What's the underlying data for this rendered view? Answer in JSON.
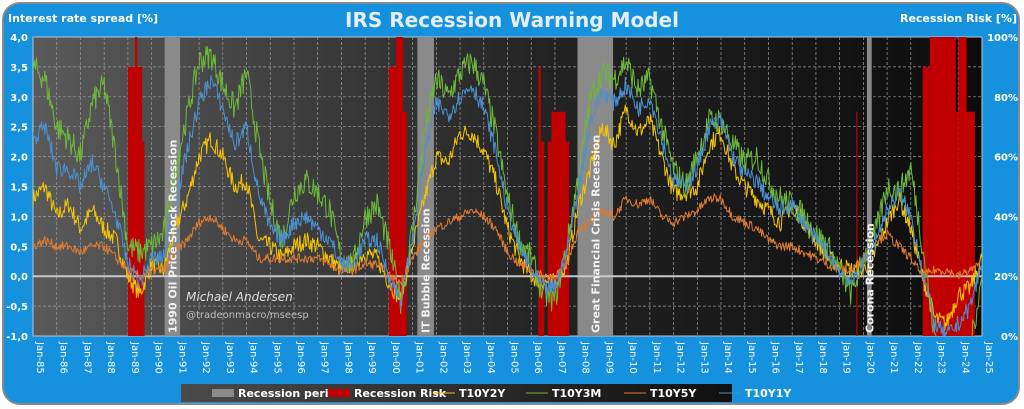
{
  "chart_data": {
    "type": "line",
    "title": "IRS Recession Warning Model",
    "y_left_label": "Interest rate spread [%]",
    "y_right_label": "Recession Risk [%]",
    "y_left_range": [
      -1.0,
      4.0
    ],
    "y_right_range": [
      0,
      100
    ],
    "y_left_ticks": [
      "4,0",
      "3,5",
      "3,0",
      "2,5",
      "2,0",
      "1,5",
      "1,0",
      "0,5",
      "0,0",
      "-0,5",
      "-1,0"
    ],
    "y_right_ticks": [
      "100%",
      "80%",
      "60%",
      "40%",
      "20%",
      "0%"
    ],
    "x_range": [
      1985,
      2025
    ],
    "x_ticks": [
      "Jan-85",
      "Jan-86",
      "Jan-87",
      "Jan-88",
      "Jan-89",
      "Jan-90",
      "Jan-91",
      "Jan-92",
      "Jan-93",
      "Jan-94",
      "Jan-95",
      "Jan-96",
      "Jan-97",
      "Jan-98",
      "Jan-99",
      "Jan-00",
      "Jan-01",
      "Jan-02",
      "Jan-03",
      "Jan-04",
      "Jan-05",
      "Jan-06",
      "Jan-07",
      "Jan-08",
      "Jan-09",
      "Jan-10",
      "Jan-11",
      "Jan-12",
      "Jan-13",
      "Jan-14",
      "Jan-15",
      "Jan-16",
      "Jan-17",
      "Jan-18",
      "Jan-19",
      "Jan-20",
      "Jan-21",
      "Jan-22",
      "Jan-23",
      "Jan-24",
      "Jan-25"
    ],
    "grid": true,
    "recession_periods": [
      {
        "label": "1990 Oil Price Shock  Recession",
        "start": 1990.55,
        "end": 1991.2
      },
      {
        "label": "IT Bubble Recession",
        "start": 2001.2,
        "end": 2001.9
      },
      {
        "label": "Great Financial Crisis Recession",
        "start": 2007.95,
        "end": 2009.45
      },
      {
        "label": "Corona Recession",
        "start": 2020.15,
        "end": 2020.35
      }
    ],
    "recession_risk": [
      {
        "start": 1989.0,
        "end": 1989.3,
        "value": 90
      },
      {
        "start": 1989.3,
        "end": 1989.4,
        "value": 100
      },
      {
        "start": 1989.4,
        "end": 1989.6,
        "value": 90
      },
      {
        "start": 1989.6,
        "end": 1989.7,
        "value": 65
      },
      {
        "start": 2000.0,
        "end": 2000.15,
        "value": 90
      },
      {
        "start": 2000.15,
        "end": 2000.3,
        "value": 90
      },
      {
        "start": 2000.3,
        "end": 2000.6,
        "value": 100
      },
      {
        "start": 2000.6,
        "end": 2000.75,
        "value": 75
      },
      {
        "start": 2006.3,
        "end": 2006.4,
        "value": 90
      },
      {
        "start": 2006.4,
        "end": 2006.55,
        "value": 65
      },
      {
        "start": 2006.7,
        "end": 2006.85,
        "value": 65
      },
      {
        "start": 2006.85,
        "end": 2007.45,
        "value": 75
      },
      {
        "start": 2007.45,
        "end": 2007.6,
        "value": 65
      },
      {
        "start": 2019.7,
        "end": 2019.75,
        "value": 75
      },
      {
        "start": 2022.5,
        "end": 2022.8,
        "value": 90
      },
      {
        "start": 2022.8,
        "end": 2023.25,
        "value": 100
      },
      {
        "start": 2023.25,
        "end": 2023.65,
        "value": 100
      },
      {
        "start": 2023.65,
        "end": 2023.9,
        "value": 100
      },
      {
        "start": 2023.9,
        "end": 2024.0,
        "value": 75
      },
      {
        "start": 2024.0,
        "end": 2024.35,
        "value": 100
      },
      {
        "start": 2024.35,
        "end": 2024.7,
        "value": 75
      }
    ],
    "series": [
      {
        "name": "T10Y2Y",
        "color": "#f5c400",
        "x": [
          1985,
          1985.5,
          1986,
          1986.5,
          1987,
          1987.5,
          1988,
          1988.5,
          1989,
          1989.5,
          1990,
          1990.5,
          1991,
          1991.5,
          1992,
          1992.5,
          1993,
          1993.5,
          1994,
          1994.5,
          1995,
          1995.5,
          1996,
          1996.5,
          1997,
          1997.5,
          1998,
          1998.5,
          1999,
          1999.5,
          2000,
          2000.5,
          2001,
          2001.5,
          2002,
          2002.5,
          2003,
          2003.5,
          2004,
          2004.5,
          2005,
          2005.5,
          2006,
          2006.5,
          2007,
          2007.5,
          2008,
          2008.5,
          2009,
          2009.5,
          2010,
          2010.5,
          2011,
          2011.5,
          2012,
          2012.5,
          2013,
          2013.5,
          2014,
          2014.5,
          2015,
          2015.5,
          2016,
          2016.5,
          2017,
          2017.5,
          2018,
          2018.5,
          2019,
          2019.5,
          2020,
          2020.5,
          2021,
          2021.5,
          2022,
          2022.5,
          2023,
          2023.5,
          2024,
          2024.5,
          2025
        ],
        "y": [
          1.3,
          1.5,
          1.0,
          1.2,
          0.8,
          1.1,
          0.8,
          0.6,
          0.0,
          -0.3,
          0.2,
          0.1,
          0.8,
          1.3,
          2.0,
          2.3,
          2.0,
          1.5,
          1.6,
          0.6,
          0.5,
          0.3,
          0.5,
          0.6,
          0.5,
          0.3,
          0.1,
          0.2,
          0.4,
          0.3,
          -0.1,
          -0.4,
          0.5,
          1.3,
          2.0,
          1.9,
          2.4,
          2.4,
          2.1,
          1.6,
          0.8,
          0.3,
          0.0,
          -0.1,
          -0.1,
          0.2,
          1.2,
          1.8,
          2.5,
          2.2,
          2.8,
          2.4,
          2.6,
          2.0,
          1.4,
          1.4,
          1.5,
          2.2,
          2.4,
          1.8,
          1.5,
          1.3,
          1.1,
          0.9,
          1.2,
          0.9,
          0.6,
          0.3,
          0.2,
          0.1,
          0.1,
          0.4,
          0.9,
          1.3,
          0.8,
          0.0,
          -0.7,
          -0.8,
          -0.3,
          -0.2,
          0.3
        ]
      },
      {
        "name": "T10Y3M",
        "color": "#6cb83a",
        "x": [
          1985,
          1985.5,
          1986,
          1986.5,
          1987,
          1987.5,
          1988,
          1988.5,
          1989,
          1989.5,
          1990,
          1990.5,
          1991,
          1991.5,
          1992,
          1992.5,
          1993,
          1993.5,
          1994,
          1994.5,
          1995,
          1995.5,
          1996,
          1996.5,
          1997,
          1997.5,
          1998,
          1998.5,
          1999,
          1999.5,
          2000,
          2000.5,
          2001,
          2001.5,
          2002,
          2002.5,
          2003,
          2003.5,
          2004,
          2004.5,
          2005,
          2005.5,
          2006,
          2006.5,
          2007,
          2007.5,
          2008,
          2008.5,
          2009,
          2009.5,
          2010,
          2010.5,
          2011,
          2011.5,
          2012,
          2012.5,
          2013,
          2013.5,
          2014,
          2014.5,
          2015,
          2015.5,
          2016,
          2016.5,
          2017,
          2017.5,
          2018,
          2018.5,
          2019,
          2019.5,
          2020,
          2020.5,
          2021,
          2021.5,
          2022,
          2022.5,
          2023,
          2023.5,
          2024,
          2024.5,
          2025
        ],
        "y": [
          3.5,
          3.3,
          2.5,
          2.3,
          2.0,
          2.9,
          3.2,
          2.0,
          0.5,
          0.4,
          0.5,
          0.7,
          1.8,
          2.7,
          3.6,
          3.7,
          3.2,
          2.8,
          3.4,
          2.2,
          1.2,
          0.6,
          1.4,
          1.6,
          1.4,
          1.1,
          0.3,
          0.2,
          1.0,
          1.2,
          0.5,
          -0.4,
          0.8,
          2.4,
          3.3,
          3.0,
          3.4,
          3.6,
          3.2,
          2.4,
          1.3,
          0.6,
          0.3,
          -0.3,
          -0.4,
          0.5,
          1.7,
          3.0,
          3.4,
          3.3,
          3.6,
          3.1,
          3.3,
          2.5,
          1.8,
          1.5,
          2.0,
          2.6,
          2.6,
          2.2,
          1.9,
          2.0,
          1.6,
          1.3,
          1.2,
          1.0,
          0.7,
          0.5,
          0.1,
          -0.3,
          0.3,
          0.7,
          1.5,
          1.4,
          1.8,
          0.5,
          -1.0,
          -1.3,
          -1.3,
          -1.2,
          0.0
        ]
      },
      {
        "name": "T10Y5Y",
        "color": "#e07a30",
        "x": [
          1985,
          1985.5,
          1986,
          1986.5,
          1987,
          1987.5,
          1988,
          1988.5,
          1989,
          1989.5,
          1990,
          1990.5,
          1991,
          1991.5,
          1992,
          1992.5,
          1993,
          1993.5,
          1994,
          1994.5,
          1995,
          1995.5,
          1996,
          1996.5,
          1997,
          1997.5,
          1998,
          1998.5,
          1999,
          1999.5,
          2000,
          2000.5,
          2001,
          2001.5,
          2002,
          2002.5,
          2003,
          2003.5,
          2004,
          2004.5,
          2005,
          2005.5,
          2006,
          2006.5,
          2007,
          2007.5,
          2008,
          2008.5,
          2009,
          2009.5,
          2010,
          2010.5,
          2011,
          2011.5,
          2012,
          2012.5,
          2013,
          2013.5,
          2014,
          2014.5,
          2015,
          2015.5,
          2016,
          2016.5,
          2017,
          2017.5,
          2018,
          2018.5,
          2019,
          2019.5,
          2020,
          2020.5,
          2021,
          2021.5,
          2022,
          2022.5,
          2023,
          2023.5,
          2024,
          2024.5,
          2025
        ],
        "y": [
          0.5,
          0.6,
          0.5,
          0.5,
          0.4,
          0.5,
          0.5,
          0.3,
          0.1,
          0.0,
          0.1,
          0.1,
          0.4,
          0.6,
          0.9,
          1.0,
          0.8,
          0.6,
          0.6,
          0.3,
          0.3,
          0.3,
          0.3,
          0.3,
          0.3,
          0.2,
          0.1,
          0.1,
          0.2,
          0.2,
          0.0,
          -0.1,
          0.3,
          0.6,
          0.8,
          0.9,
          1.0,
          1.1,
          1.0,
          0.8,
          0.4,
          0.2,
          0.1,
          0.0,
          0.0,
          0.2,
          0.8,
          0.9,
          1.1,
          1.0,
          1.3,
          1.2,
          1.3,
          1.0,
          0.9,
          1.0,
          1.1,
          1.3,
          1.3,
          1.0,
          0.9,
          0.8,
          0.6,
          0.5,
          0.5,
          0.4,
          0.3,
          0.2,
          0.1,
          0.1,
          0.3,
          0.6,
          0.7,
          0.5,
          0.3,
          0.0,
          0.1,
          0.1,
          0.0,
          0.1,
          0.2
        ]
      },
      {
        "name": "T10Y1Y",
        "color": "#4a90d0",
        "x": [
          1985,
          1985.5,
          1986,
          1986.5,
          1987,
          1987.5,
          1988,
          1988.5,
          1989,
          1989.5,
          1990,
          1990.5,
          1991,
          1991.5,
          1992,
          1992.5,
          1993,
          1993.5,
          1994,
          1994.5,
          1995,
          1995.5,
          1996,
          1996.5,
          1997,
          1997.5,
          1998,
          1998.5,
          1999,
          1999.5,
          2000,
          2000.5,
          2001,
          2001.5,
          2002,
          2002.5,
          2003,
          2003.5,
          2004,
          2004.5,
          2005,
          2005.5,
          2006,
          2006.5,
          2007,
          2007.5,
          2008,
          2008.5,
          2009,
          2009.5,
          2010,
          2010.5,
          2011,
          2011.5,
          2012,
          2012.5,
          2013,
          2013.5,
          2014,
          2014.5,
          2015,
          2015.5,
          2016,
          2016.5,
          2017,
          2017.5,
          2018,
          2018.5,
          2019,
          2019.5,
          2020,
          2020.5,
          2021,
          2021.5,
          2022,
          2022.5,
          2023,
          2023.5,
          2024,
          2024.5,
          2025
        ],
        "y": [
          2.3,
          2.5,
          1.8,
          1.8,
          1.5,
          1.9,
          1.5,
          1.0,
          0.2,
          -0.1,
          0.3,
          0.3,
          1.2,
          2.1,
          2.9,
          3.3,
          2.8,
          2.2,
          2.5,
          1.4,
          0.8,
          0.6,
          0.9,
          1.0,
          0.8,
          0.6,
          0.2,
          0.2,
          0.6,
          0.6,
          0.0,
          -0.4,
          0.6,
          2.0,
          2.9,
          2.7,
          3.0,
          3.2,
          2.8,
          2.1,
          1.1,
          0.5,
          0.1,
          -0.2,
          -0.2,
          0.4,
          1.5,
          2.6,
          3.1,
          2.9,
          3.2,
          2.8,
          3.0,
          2.3,
          1.6,
          1.5,
          1.8,
          2.5,
          2.6,
          2.0,
          1.7,
          1.6,
          1.3,
          1.1,
          1.2,
          0.9,
          0.6,
          0.4,
          0.1,
          -0.1,
          0.2,
          0.6,
          1.1,
          1.4,
          1.0,
          0.1,
          -0.8,
          -1.0,
          -0.8,
          -0.5,
          0.2
        ]
      }
    ],
    "legend": [
      {
        "label": "Recession periods",
        "kind": "box",
        "color": "#8a8a8a"
      },
      {
        "label": "Recession Risk",
        "kind": "box",
        "color": "#c00000"
      },
      {
        "label": "T10Y2Y",
        "kind": "line",
        "color": "#f5c400"
      },
      {
        "label": "T10Y3M",
        "kind": "line",
        "color": "#6cb83a"
      },
      {
        "label": "T10Y5Y",
        "kind": "line",
        "color": "#e07a30"
      },
      {
        "label": "T10Y1Y",
        "kind": "line",
        "color": "#4a90d0"
      }
    ],
    "legend_position": "bottom-center",
    "watermark": {
      "author": "Michael Andersen",
      "handle": "@tradeonmacro/mseesp"
    }
  }
}
